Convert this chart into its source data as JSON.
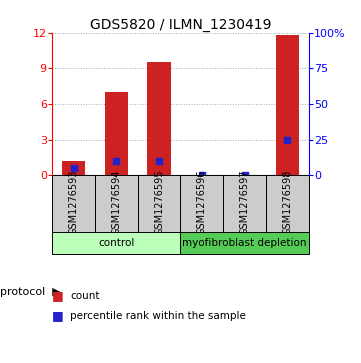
{
  "title": "GDS5820 / ILMN_1230419",
  "samples": [
    "GSM1276593",
    "GSM1276594",
    "GSM1276595",
    "GSM1276596",
    "GSM1276597",
    "GSM1276598"
  ],
  "counts": [
    1.2,
    7.0,
    9.5,
    0.0,
    0.0,
    11.8
  ],
  "percentiles": [
    5.0,
    10.0,
    10.0,
    0.0,
    0.0,
    25.0
  ],
  "left_ylim": [
    0,
    12
  ],
  "right_ylim": [
    0,
    100
  ],
  "left_yticks": [
    0,
    3,
    6,
    9,
    12
  ],
  "right_yticks": [
    0,
    25,
    50,
    75,
    100
  ],
  "right_yticklabels": [
    "0",
    "25",
    "50",
    "75",
    "100%"
  ],
  "bar_color": "#cc2222",
  "dot_color": "#2222cc",
  "grid_color": "#aaaaaa",
  "protocol_groups": [
    {
      "label": "control",
      "indices": [
        0,
        1,
        2
      ],
      "color": "#bbffbb"
    },
    {
      "label": "myofibroblast depletion",
      "indices": [
        3,
        4,
        5
      ],
      "color": "#55cc55"
    }
  ],
  "sample_box_color": "#cccccc",
  "protocol_label": "protocol",
  "legend_count": "count",
  "legend_percentile": "percentile rank within the sample",
  "bar_width": 0.55,
  "dot_marker": "s",
  "dot_size": 18,
  "title_fontsize": 10,
  "tick_fontsize": 8,
  "label_fontsize": 7,
  "legend_fontsize": 7.5
}
